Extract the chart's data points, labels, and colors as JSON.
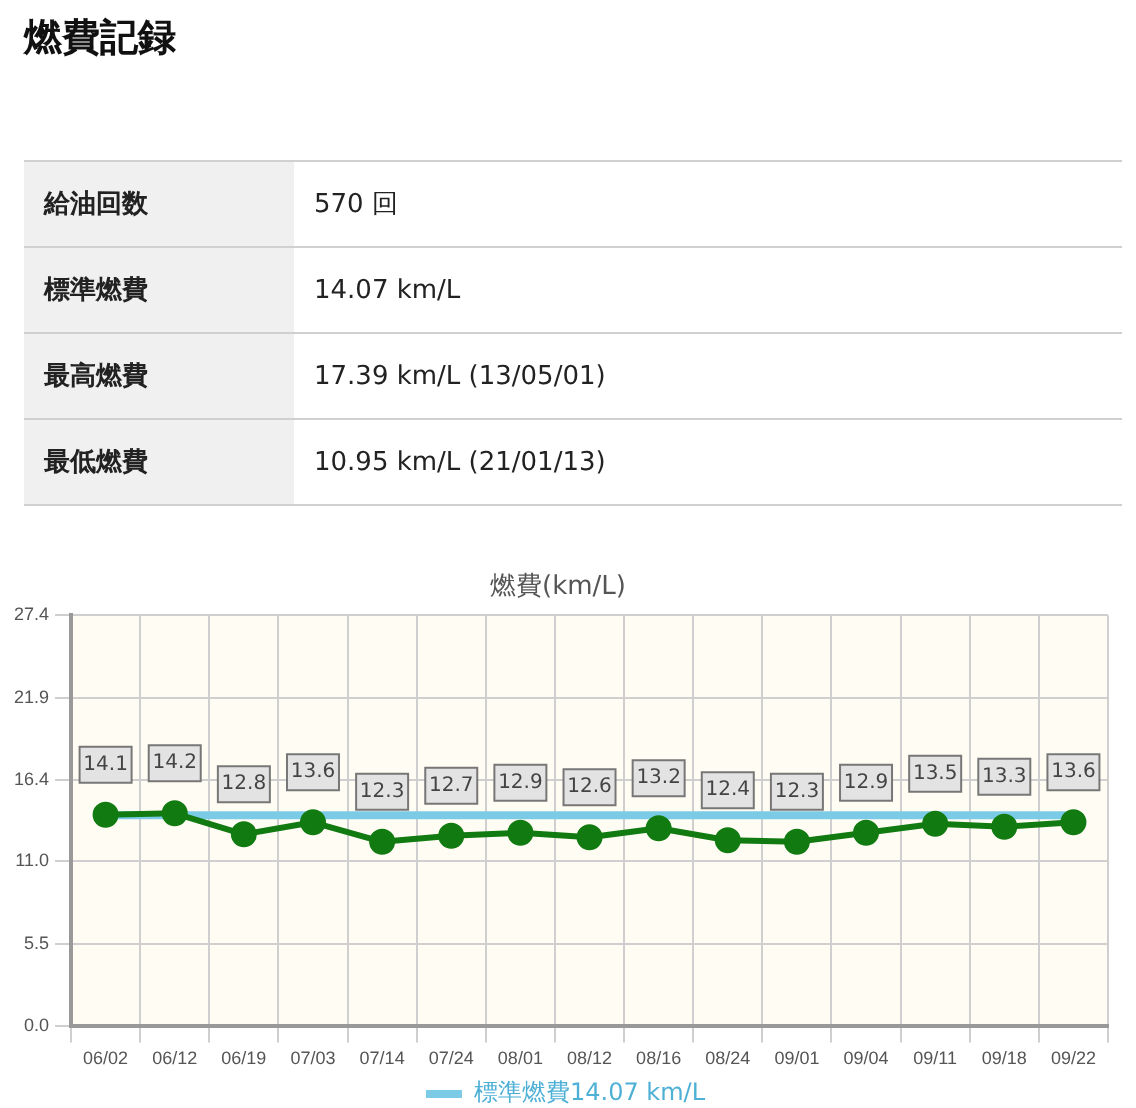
{
  "chart_data": [
    {
      "type": "other",
      "title": "燃費記録",
      "annotations": [
        "給油回数",
        "570 回",
        "標準燃費",
        "14.07 km/L",
        "最高燃費",
        "17.39 km/L (13/05/01)",
        "最低燃費",
        "10.95 km/L (21/01/13)"
      ]
    },
    {
      "type": "line",
      "title": "燃費(km/L)",
      "categories": [
        "06/02",
        "06/12",
        "06/19",
        "07/03",
        "07/14",
        "07/24",
        "08/01",
        "08/12",
        "08/16",
        "08/24",
        "09/01",
        "09/04",
        "09/11",
        "09/18",
        "09/22"
      ],
      "series": [
        {
          "color": "#117a11",
          "values": [
            14.1,
            14.2,
            12.8,
            13.6,
            12.3,
            12.7,
            12.9,
            12.6,
            13.2,
            12.4,
            12.3,
            12.9,
            13.5,
            13.3,
            13.6
          ]
        }
      ],
      "ylim": [
        0,
        27.4
      ],
      "yticks": [
        {
          "value": 0,
          "label": "0.0"
        },
        5.5,
        {
          "value": 11,
          "label": "11.0"
        },
        16.4,
        21.9,
        27.4
      ],
      "ref_lines": [
        {
          "axis": "y",
          "value": 14.07,
          "label": "標準燃費14.07 km/L",
          "color": "#7ccbe6"
        }
      ],
      "data_labels": true,
      "grid": true,
      "legend": "bottom",
      "marker": "circle",
      "line_style": "solid"
    }
  ]
}
